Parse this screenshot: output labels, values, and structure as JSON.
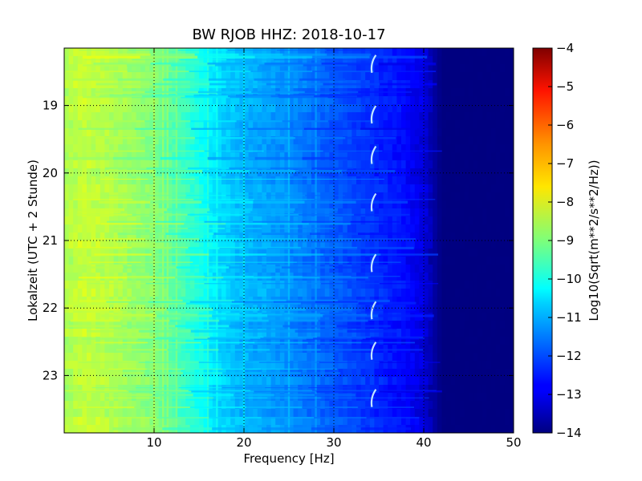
{
  "chart_data": {
    "type": "heatmap",
    "title": "BW RJOB HHZ: 2018-10-17",
    "xlabel": "Frequency [Hz]",
    "ylabel": "Lokalzeit (UTC + 2 Stunde)",
    "xlim": [
      0,
      50
    ],
    "ylim": [
      18.15,
      23.85
    ],
    "y_inverted": true,
    "x_ticks": [
      10,
      20,
      30,
      40,
      50
    ],
    "x_tick_labels": [
      "10",
      "20",
      "30",
      "40",
      "50"
    ],
    "y_ticks": [
      19,
      20,
      21,
      22,
      23
    ],
    "y_tick_labels": [
      "19",
      "20",
      "21",
      "22",
      "23"
    ],
    "grid": true,
    "colormap": "jet",
    "colorbar": {
      "label": "Log10(Sqrt(m**2/s**2/Hz))",
      "range": [
        -14,
        -4
      ],
      "ticks": [
        -4,
        -5,
        -6,
        -7,
        -8,
        -9,
        -10,
        -11,
        -12,
        -13,
        -14
      ],
      "tick_labels": [
        "−4",
        "−5",
        "−6",
        "−7",
        "−8",
        "−9",
        "−10",
        "−11",
        "−12",
        "−13",
        "−14"
      ]
    },
    "spectral_profile": {
      "frequency_hz": [
        0,
        2,
        5,
        8,
        10,
        13,
        15,
        17,
        20,
        23,
        25,
        28,
        30,
        33,
        35,
        38,
        40,
        41,
        42,
        50
      ],
      "log10_amplitude": [
        -8.6,
        -8.3,
        -8.5,
        -8.8,
        -9.0,
        -9.6,
        -10.0,
        -10.6,
        -11.0,
        -11.2,
        -11.4,
        -11.7,
        -11.9,
        -12.2,
        -12.4,
        -12.7,
        -13.1,
        -13.6,
        -14.0,
        -14.0
      ]
    },
    "spectral_lines_hz": [
      10,
      11,
      11.5,
      12.5,
      16,
      17,
      20,
      25,
      28
    ],
    "recurring_feature": {
      "frequency_hz": 34.5,
      "times_h": [
        18.35,
        19.1,
        19.7,
        20.4,
        21.3,
        22.0,
        22.6,
        23.3
      ]
    }
  }
}
